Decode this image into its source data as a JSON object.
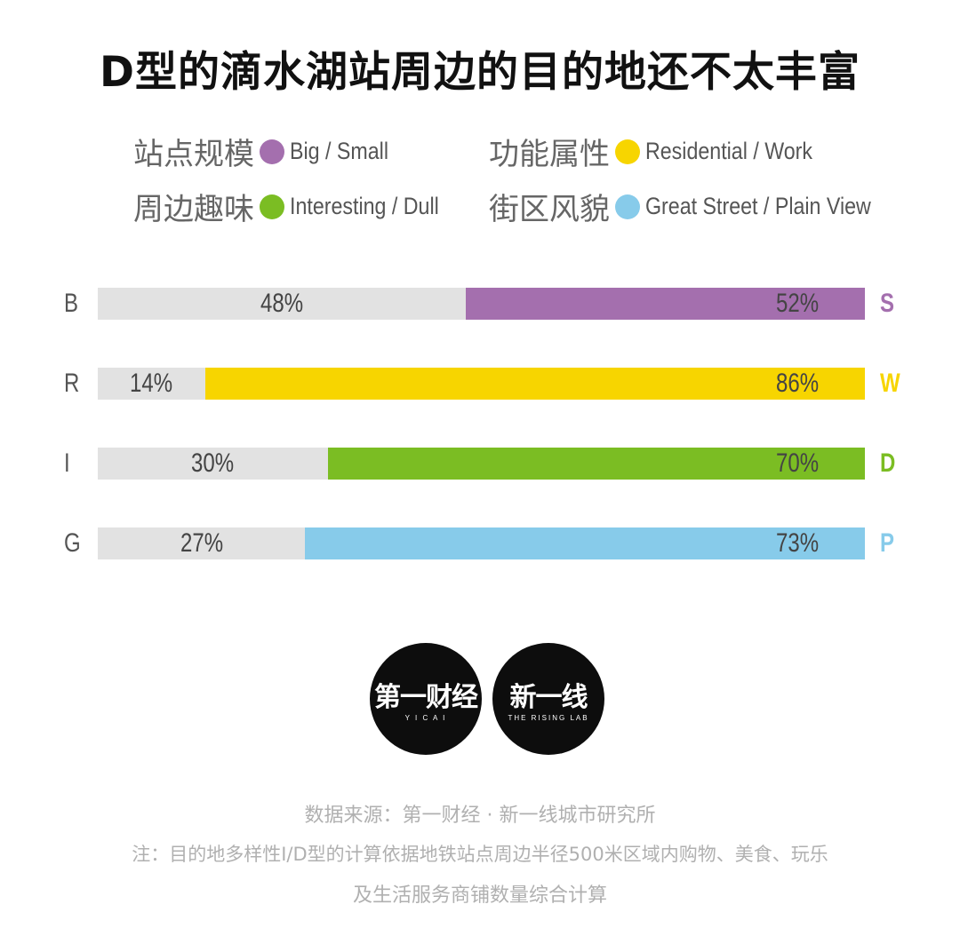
{
  "title": "D型的滴水湖站周边的目的地还不太丰富",
  "legend": [
    {
      "cn": "站点规模",
      "en": "Big / Small",
      "color": "#a46fae"
    },
    {
      "cn": "功能属性",
      "en": "Residential / Work",
      "color": "#f7d500"
    },
    {
      "cn": "周边趣味",
      "en": "Interesting / Dull",
      "color": "#7bbd23"
    },
    {
      "cn": "街区风貌",
      "en": "Great Street / Plain View",
      "color": "#87cbea"
    }
  ],
  "chart_data": {
    "type": "bar",
    "orientation": "horizontal",
    "stacked": true,
    "categories": [
      "B",
      "R",
      "I",
      "G"
    ],
    "right_labels": [
      "S",
      "W",
      "D",
      "P"
    ],
    "series": [
      {
        "values": [
          48,
          14,
          30,
          27
        ],
        "color": "#e2e2e2"
      },
      {
        "values": [
          52,
          86,
          70,
          73
        ],
        "colors": [
          "#a46fae",
          "#f7d500",
          "#7bbd23",
          "#87cbea"
        ]
      }
    ],
    "value_labels_left": [
      "48%",
      "14%",
      "30%",
      "27%"
    ],
    "value_labels_right": [
      "52%",
      "86%",
      "70%",
      "73%"
    ],
    "xlim": [
      0,
      100
    ],
    "grid": false
  },
  "logos": {
    "left": {
      "main": "第一财经",
      "sub": "Y I C A I"
    },
    "right": {
      "main": "新一线",
      "sub": "THE RISING LAB"
    }
  },
  "footer": {
    "source": "数据来源：第一财经 · 新一线城市研究所",
    "note_line1": "注：目的地多样性I/D型的计算依据地铁站点周边半径500米区域内购物、美食、玩乐",
    "note_line2": "及生活服务商铺数量综合计算"
  }
}
